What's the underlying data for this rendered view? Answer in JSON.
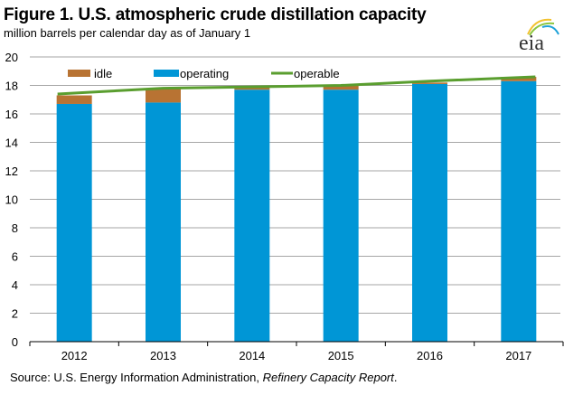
{
  "header": {
    "title": "Figure 1. U.S. atmospheric crude distillation capacity",
    "subtitle": "million barrels per calendar day as of January 1",
    "logo_text": "eia"
  },
  "footer": {
    "source_prefix": "Source: U.S. Energy Information Administration, ",
    "source_report": "Refinery Capacity Report",
    "source_suffix": "."
  },
  "colors": {
    "idle": "#B87333",
    "operating": "#0096D6",
    "operable": "#5A9E2F",
    "grid": "#A6A6A6",
    "axis": "#000000"
  },
  "chart_data": {
    "type": "bar",
    "stacked": true,
    "title": "Figure 1. U.S. atmospheric crude distillation capacity",
    "subtitle": "million barrels per calendar day as of January 1",
    "xlabel": "",
    "ylabel": "",
    "categories": [
      "2012",
      "2013",
      "2014",
      "2015",
      "2016",
      "2017"
    ],
    "ylim": [
      0,
      20
    ],
    "yticks": [
      0,
      2,
      4,
      6,
      8,
      10,
      12,
      14,
      16,
      18,
      20
    ],
    "grid": true,
    "legend": {
      "placement": "top",
      "entries": [
        "idle",
        "operating",
        "operable"
      ]
    },
    "series": [
      {
        "name": "operating",
        "type": "bar",
        "values": [
          16.7,
          16.8,
          17.7,
          17.7,
          18.1,
          18.3
        ]
      },
      {
        "name": "idle",
        "type": "bar",
        "values": [
          0.6,
          1.0,
          0.2,
          0.3,
          0.1,
          0.3
        ]
      },
      {
        "name": "operable",
        "type": "line",
        "values": [
          17.4,
          17.8,
          17.9,
          18.0,
          18.3,
          18.6
        ]
      }
    ]
  }
}
